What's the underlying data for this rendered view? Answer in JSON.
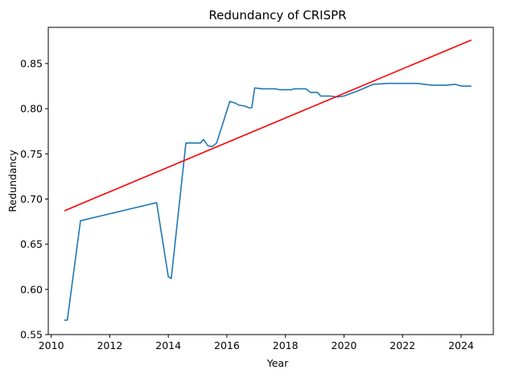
{
  "chart_data": {
    "type": "line",
    "title": "Redundancy of CRISPR",
    "xlabel": "Year",
    "ylabel": "Redundancy",
    "xlim": [
      2009.9,
      2025.1
    ],
    "ylim": [
      0.55,
      0.89
    ],
    "xticks": [
      2010,
      2012,
      2014,
      2016,
      2018,
      2020,
      2022,
      2024
    ],
    "yticks": [
      0.55,
      0.6,
      0.65,
      0.7,
      0.75,
      0.8,
      0.85
    ],
    "ytick_labels": [
      "0.55",
      "0.60",
      "0.65",
      "0.70",
      "0.75",
      "0.80",
      "0.85"
    ],
    "grid": false,
    "series": [
      {
        "color": "#1f77b4",
        "x": [
          2010.45,
          2010.55,
          2011.0,
          2013.6,
          2014.0,
          2014.1,
          2014.6,
          2015.0,
          2015.1,
          2015.2,
          2015.35,
          2015.5,
          2015.65,
          2016.1,
          2016.3,
          2016.4,
          2016.6,
          2016.75,
          2016.85,
          2016.95,
          2017.2,
          2017.5,
          2017.65,
          2017.8,
          2018.0,
          2018.2,
          2018.3,
          2018.5,
          2018.7,
          2018.85,
          2018.95,
          2019.1,
          2019.2,
          2019.5,
          2019.8,
          2020.0,
          2020.5,
          2021.0,
          2021.5,
          2022.0,
          2022.5,
          2023.0,
          2023.5,
          2023.8,
          2024.0,
          2024.35
        ],
        "y": [
          0.566,
          0.566,
          0.676,
          0.696,
          0.614,
          0.612,
          0.762,
          0.762,
          0.762,
          0.766,
          0.759,
          0.758,
          0.762,
          0.808,
          0.806,
          0.804,
          0.803,
          0.801,
          0.801,
          0.823,
          0.822,
          0.822,
          0.822,
          0.821,
          0.821,
          0.821,
          0.822,
          0.822,
          0.822,
          0.818,
          0.818,
          0.818,
          0.814,
          0.814,
          0.813,
          0.814,
          0.82,
          0.827,
          0.828,
          0.828,
          0.828,
          0.826,
          0.826,
          0.827,
          0.825,
          0.825
        ]
      },
      {
        "color": "#ff0000",
        "x": [
          2010.45,
          2024.35
        ],
        "y": [
          0.687,
          0.876
        ]
      }
    ]
  }
}
